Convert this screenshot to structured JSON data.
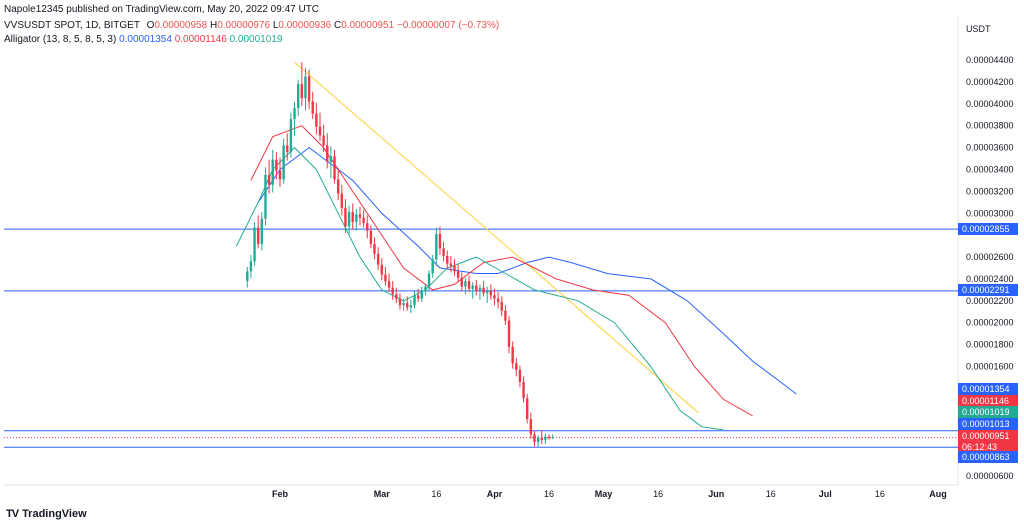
{
  "header": {
    "publisher_line": "Napole12345 published on TradingView.com, May 20, 2022 09:47 UTC",
    "symbol_line": "VVSUSDT SPOT, 1D, BITGET",
    "ohlc": {
      "o_label": "O",
      "o": "0.00000958",
      "h_label": "H",
      "h": "0.00000976",
      "l_label": "L",
      "l": "0.00000936",
      "c_label": "C",
      "c": "0.00000951",
      "change": "−0.00000007 (−0.73%)"
    },
    "indicator": {
      "name": "Alligator (13, 8, 5, 8, 5, 3)",
      "jaw": "0.00001354",
      "teeth": "0.00001146",
      "lips": "0.00001019"
    }
  },
  "footer": {
    "brand": "TradingView"
  },
  "colors": {
    "up": "#22ab94",
    "down": "#f23645",
    "jaw": "#2962ff",
    "teeth": "#f23645",
    "lips": "#22ab94",
    "trend": "#ffd54f",
    "level": "#2962ff"
  },
  "chart_data": {
    "type": "candlestick",
    "currency": "USDT",
    "x_range": [
      "2022-01-19",
      "2022-08-20"
    ],
    "x_ticks": [
      {
        "date": "2022-02-01",
        "label": "Feb"
      },
      {
        "date": "2022-03-01",
        "label": "Mar"
      },
      {
        "date": "2022-03-16",
        "label": "16"
      },
      {
        "date": "2022-04-01",
        "label": "Apr"
      },
      {
        "date": "2022-04-16",
        "label": "16"
      },
      {
        "date": "2022-05-01",
        "label": "May"
      },
      {
        "date": "2022-05-16",
        "label": "16"
      },
      {
        "date": "2022-06-01",
        "label": "Jun"
      },
      {
        "date": "2022-06-16",
        "label": "16"
      },
      {
        "date": "2022-07-01",
        "label": "Jul"
      },
      {
        "date": "2022-07-16",
        "label": "16"
      },
      {
        "date": "2022-08-01",
        "label": "Aug"
      }
    ],
    "ylim": [
      5.3e-06,
      4.9e-06
    ],
    "y_ticks": [
      "0.00004400",
      "0.00004200",
      "0.00004000",
      "0.00003800",
      "0.00003600",
      "0.00003400",
      "0.00003200",
      "0.00003000",
      "0.00002600",
      "0.00002400",
      "0.00002200",
      "0.00002000",
      "0.00001800",
      "0.00001600",
      "0.00000600"
    ],
    "y_tick_values": [
      4.4e-05,
      4.2e-05,
      4e-05,
      3.8e-05,
      3.6e-05,
      3.4e-05,
      3.2e-05,
      3e-05,
      2.6e-05,
      2.4e-05,
      2.2e-05,
      2e-05,
      1.8e-05,
      1.6e-05,
      6e-06
    ],
    "candles": [
      {
        "d": "2022-01-23",
        "o": 2.38e-05,
        "h": 2.51e-05,
        "l": 2.32e-05,
        "c": 2.47e-05
      },
      {
        "d": "2022-01-24",
        "o": 2.47e-05,
        "h": 2.62e-05,
        "l": 2.41e-05,
        "c": 2.56e-05
      },
      {
        "d": "2022-01-25",
        "o": 2.56e-05,
        "h": 2.92e-05,
        "l": 2.52e-05,
        "c": 2.87e-05
      },
      {
        "d": "2022-01-26",
        "o": 2.87e-05,
        "h": 2.98e-05,
        "l": 2.68e-05,
        "c": 2.72e-05
      },
      {
        "d": "2022-01-27",
        "o": 2.72e-05,
        "h": 3.01e-05,
        "l": 2.66e-05,
        "c": 2.95e-05
      },
      {
        "d": "2022-01-28",
        "o": 2.95e-05,
        "h": 3.42e-05,
        "l": 2.89e-05,
        "c": 3.35e-05
      },
      {
        "d": "2022-01-29",
        "o": 3.35e-05,
        "h": 3.49e-05,
        "l": 3.18e-05,
        "c": 3.26e-05
      },
      {
        "d": "2022-01-30",
        "o": 3.26e-05,
        "h": 3.58e-05,
        "l": 3.19e-05,
        "c": 3.49e-05
      },
      {
        "d": "2022-01-31",
        "o": 3.49e-05,
        "h": 3.56e-05,
        "l": 3.31e-05,
        "c": 3.39e-05
      },
      {
        "d": "2022-02-01",
        "o": 3.39e-05,
        "h": 3.51e-05,
        "l": 3.24e-05,
        "c": 3.31e-05
      },
      {
        "d": "2022-02-02",
        "o": 3.31e-05,
        "h": 3.68e-05,
        "l": 3.27e-05,
        "c": 3.62e-05
      },
      {
        "d": "2022-02-03",
        "o": 3.62e-05,
        "h": 3.73e-05,
        "l": 3.48e-05,
        "c": 3.56e-05
      },
      {
        "d": "2022-02-04",
        "o": 3.56e-05,
        "h": 3.92e-05,
        "l": 3.51e-05,
        "c": 3.86e-05
      },
      {
        "d": "2022-02-05",
        "o": 3.86e-05,
        "h": 4.02e-05,
        "l": 3.71e-05,
        "c": 3.96e-05
      },
      {
        "d": "2022-02-06",
        "o": 3.96e-05,
        "h": 4.22e-05,
        "l": 3.89e-05,
        "c": 4.18e-05
      },
      {
        "d": "2022-02-07",
        "o": 4.18e-05,
        "h": 4.38e-05,
        "l": 3.98e-05,
        "c": 4.05e-05
      },
      {
        "d": "2022-02-08",
        "o": 4.05e-05,
        "h": 4.33e-05,
        "l": 3.94e-05,
        "c": 4.25e-05
      },
      {
        "d": "2022-02-09",
        "o": 4.25e-05,
        "h": 4.31e-05,
        "l": 3.95e-05,
        "c": 4.02e-05
      },
      {
        "d": "2022-02-10",
        "o": 4.02e-05,
        "h": 4.11e-05,
        "l": 3.86e-05,
        "c": 3.91e-05
      },
      {
        "d": "2022-02-11",
        "o": 3.91e-05,
        "h": 4.01e-05,
        "l": 3.72e-05,
        "c": 3.79e-05
      },
      {
        "d": "2022-02-12",
        "o": 3.79e-05,
        "h": 3.92e-05,
        "l": 3.66e-05,
        "c": 3.71e-05
      },
      {
        "d": "2022-02-13",
        "o": 3.71e-05,
        "h": 3.81e-05,
        "l": 3.56e-05,
        "c": 3.62e-05
      },
      {
        "d": "2022-02-14",
        "o": 3.62e-05,
        "h": 3.73e-05,
        "l": 3.41e-05,
        "c": 3.47e-05
      },
      {
        "d": "2022-02-15",
        "o": 3.47e-05,
        "h": 3.61e-05,
        "l": 3.32e-05,
        "c": 3.52e-05
      },
      {
        "d": "2022-02-16",
        "o": 3.52e-05,
        "h": 3.58e-05,
        "l": 3.27e-05,
        "c": 3.31e-05
      },
      {
        "d": "2022-02-17",
        "o": 3.31e-05,
        "h": 3.41e-05,
        "l": 3.12e-05,
        "c": 3.18e-05
      },
      {
        "d": "2022-02-18",
        "o": 3.18e-05,
        "h": 3.26e-05,
        "l": 2.98e-05,
        "c": 3.05e-05
      },
      {
        "d": "2022-02-19",
        "o": 3.05e-05,
        "h": 3.13e-05,
        "l": 2.82e-05,
        "c": 2.88e-05
      },
      {
        "d": "2022-02-20",
        "o": 2.88e-05,
        "h": 3.07e-05,
        "l": 2.81e-05,
        "c": 3.01e-05
      },
      {
        "d": "2022-02-21",
        "o": 3.01e-05,
        "h": 3.09e-05,
        "l": 2.85e-05,
        "c": 2.92e-05
      },
      {
        "d": "2022-02-22",
        "o": 2.92e-05,
        "h": 3.04e-05,
        "l": 2.84e-05,
        "c": 2.99e-05
      },
      {
        "d": "2022-02-23",
        "o": 2.99e-05,
        "h": 3.06e-05,
        "l": 2.89e-05,
        "c": 2.96e-05
      },
      {
        "d": "2022-02-24",
        "o": 2.96e-05,
        "h": 3.03e-05,
        "l": 2.87e-05,
        "c": 2.91e-05
      },
      {
        "d": "2022-02-25",
        "o": 2.91e-05,
        "h": 2.98e-05,
        "l": 2.77e-05,
        "c": 2.84e-05
      },
      {
        "d": "2022-02-26",
        "o": 2.84e-05,
        "h": 2.89e-05,
        "l": 2.68e-05,
        "c": 2.72e-05
      },
      {
        "d": "2022-02-27",
        "o": 2.72e-05,
        "h": 2.78e-05,
        "l": 2.58e-05,
        "c": 2.63e-05
      },
      {
        "d": "2022-02-28",
        "o": 2.63e-05,
        "h": 2.69e-05,
        "l": 2.48e-05,
        "c": 2.53e-05
      },
      {
        "d": "2022-03-01",
        "o": 2.53e-05,
        "h": 2.59e-05,
        "l": 2.39e-05,
        "c": 2.44e-05
      },
      {
        "d": "2022-03-02",
        "o": 2.44e-05,
        "h": 2.51e-05,
        "l": 2.34e-05,
        "c": 2.38e-05
      },
      {
        "d": "2022-03-03",
        "o": 2.38e-05,
        "h": 2.45e-05,
        "l": 2.28e-05,
        "c": 2.32e-05
      },
      {
        "d": "2022-03-04",
        "o": 2.32e-05,
        "h": 2.38e-05,
        "l": 2.21e-05,
        "c": 2.26e-05
      },
      {
        "d": "2022-03-05",
        "o": 2.26e-05,
        "h": 2.32e-05,
        "l": 2.18e-05,
        "c": 2.22e-05
      },
      {
        "d": "2022-03-06",
        "o": 2.22e-05,
        "h": 2.27e-05,
        "l": 2.12e-05,
        "c": 2.16e-05
      },
      {
        "d": "2022-03-07",
        "o": 2.16e-05,
        "h": 2.22e-05,
        "l": 2.11e-05,
        "c": 2.18e-05
      },
      {
        "d": "2022-03-08",
        "o": 2.18e-05,
        "h": 2.24e-05,
        "l": 2.11e-05,
        "c": 2.14e-05
      },
      {
        "d": "2022-03-09",
        "o": 2.14e-05,
        "h": 2.21e-05,
        "l": 2.09e-05,
        "c": 2.16e-05
      },
      {
        "d": "2022-03-10",
        "o": 2.16e-05,
        "h": 2.29e-05,
        "l": 2.13e-05,
        "c": 2.25e-05
      },
      {
        "d": "2022-03-11",
        "o": 2.25e-05,
        "h": 2.31e-05,
        "l": 2.19e-05,
        "c": 2.22e-05
      },
      {
        "d": "2022-03-12",
        "o": 2.22e-05,
        "h": 2.33e-05,
        "l": 2.19e-05,
        "c": 2.29e-05
      },
      {
        "d": "2022-03-13",
        "o": 2.29e-05,
        "h": 2.36e-05,
        "l": 2.25e-05,
        "c": 2.33e-05
      },
      {
        "d": "2022-03-14",
        "o": 2.33e-05,
        "h": 2.48e-05,
        "l": 2.29e-05,
        "c": 2.45e-05
      },
      {
        "d": "2022-03-15",
        "o": 2.45e-05,
        "h": 2.62e-05,
        "l": 2.41e-05,
        "c": 2.58e-05
      },
      {
        "d": "2022-03-16",
        "o": 2.58e-05,
        "h": 2.87e-05,
        "l": 2.52e-05,
        "c": 2.81e-05
      },
      {
        "d": "2022-03-17",
        "o": 2.81e-05,
        "h": 2.88e-05,
        "l": 2.62e-05,
        "c": 2.68e-05
      },
      {
        "d": "2022-03-18",
        "o": 2.68e-05,
        "h": 2.74e-05,
        "l": 2.56e-05,
        "c": 2.61e-05
      },
      {
        "d": "2022-03-19",
        "o": 2.61e-05,
        "h": 2.66e-05,
        "l": 2.49e-05,
        "c": 2.54e-05
      },
      {
        "d": "2022-03-20",
        "o": 2.54e-05,
        "h": 2.61e-05,
        "l": 2.46e-05,
        "c": 2.52e-05
      },
      {
        "d": "2022-03-21",
        "o": 2.52e-05,
        "h": 2.58e-05,
        "l": 2.43e-05,
        "c": 2.47e-05
      },
      {
        "d": "2022-03-22",
        "o": 2.47e-05,
        "h": 2.53e-05,
        "l": 2.37e-05,
        "c": 2.41e-05
      },
      {
        "d": "2022-03-23",
        "o": 2.41e-05,
        "h": 2.46e-05,
        "l": 2.29e-05,
        "c": 2.33e-05
      },
      {
        "d": "2022-03-24",
        "o": 2.33e-05,
        "h": 2.41e-05,
        "l": 2.26e-05,
        "c": 2.38e-05
      },
      {
        "d": "2022-03-25",
        "o": 2.38e-05,
        "h": 2.43e-05,
        "l": 2.28e-05,
        "c": 2.31e-05
      },
      {
        "d": "2022-03-26",
        "o": 2.31e-05,
        "h": 2.37e-05,
        "l": 2.22e-05,
        "c": 2.34e-05
      },
      {
        "d": "2022-03-27",
        "o": 2.34e-05,
        "h": 2.39e-05,
        "l": 2.25e-05,
        "c": 2.29e-05
      },
      {
        "d": "2022-03-28",
        "o": 2.29e-05,
        "h": 2.35e-05,
        "l": 2.21e-05,
        "c": 2.32e-05
      },
      {
        "d": "2022-03-29",
        "o": 2.32e-05,
        "h": 2.38e-05,
        "l": 2.24e-05,
        "c": 2.27e-05
      },
      {
        "d": "2022-03-30",
        "o": 2.27e-05,
        "h": 2.33e-05,
        "l": 2.18e-05,
        "c": 2.29e-05
      },
      {
        "d": "2022-03-31",
        "o": 2.29e-05,
        "h": 2.35e-05,
        "l": 2.21e-05,
        "c": 2.25e-05
      },
      {
        "d": "2022-04-01",
        "o": 2.25e-05,
        "h": 2.31e-05,
        "l": 2.16e-05,
        "c": 2.22e-05
      },
      {
        "d": "2022-04-02",
        "o": 2.22e-05,
        "h": 2.28e-05,
        "l": 2.13e-05,
        "c": 2.19e-05
      },
      {
        "d": "2022-04-03",
        "o": 2.19e-05,
        "h": 2.24e-05,
        "l": 2.06e-05,
        "c": 2.11e-05
      },
      {
        "d": "2022-04-04",
        "o": 2.11e-05,
        "h": 2.16e-05,
        "l": 1.98e-05,
        "c": 2.02e-05
      },
      {
        "d": "2022-04-05",
        "o": 2.02e-05,
        "h": 2.06e-05,
        "l": 1.72e-05,
        "c": 1.78e-05
      },
      {
        "d": "2022-04-06",
        "o": 1.78e-05,
        "h": 1.83e-05,
        "l": 1.58e-05,
        "c": 1.63e-05
      },
      {
        "d": "2022-04-07",
        "o": 1.63e-05,
        "h": 1.68e-05,
        "l": 1.51e-05,
        "c": 1.57e-05
      },
      {
        "d": "2022-04-08",
        "o": 1.57e-05,
        "h": 1.61e-05,
        "l": 1.41e-05,
        "c": 1.46e-05
      },
      {
        "d": "2022-04-09",
        "o": 1.46e-05,
        "h": 1.51e-05,
        "l": 1.27e-05,
        "c": 1.31e-05
      },
      {
        "d": "2022-04-10",
        "o": 1.31e-05,
        "h": 1.35e-05,
        "l": 1.08e-05,
        "c": 1.12e-05
      },
      {
        "d": "2022-04-11",
        "o": 1.12e-05,
        "h": 1.18e-05,
        "l": 9.4e-06,
        "c": 9.8e-06
      },
      {
        "d": "2022-04-12",
        "o": 9.8e-06,
        "h": 1.01e-05,
        "l": 8.7e-06,
        "c": 9.1e-06
      },
      {
        "d": "2022-04-13",
        "o": 9.1e-06,
        "h": 9.7e-06,
        "l": 8.6e-06,
        "c": 9.5e-06
      },
      {
        "d": "2022-04-14",
        "o": 9.5e-06,
        "h": 1.02e-05,
        "l": 8.9e-06,
        "c": 9.3e-06
      },
      {
        "d": "2022-04-15",
        "o": 9.3e-06,
        "h": 9.9e-06,
        "l": 8.9e-06,
        "c": 9.6e-06
      },
      {
        "d": "2022-04-16",
        "o": 9.6e-06,
        "h": 9.8e-06,
        "l": 9.3e-06,
        "c": 9.5e-06
      },
      {
        "d": "2022-04-17",
        "o": 9.5e-06,
        "h": 9.8e-06,
        "l": 9.4e-06,
        "c": 9.51e-06
      }
    ],
    "alligator": {
      "jaw": [
        [
          3.1e-05,
          -3
        ],
        [
          3.4e-05,
          0
        ],
        [
          3.6e-05,
          4
        ],
        [
          3.5e-05,
          6
        ],
        [
          3.3e-05,
          10
        ],
        [
          3e-05,
          14
        ],
        [
          2.7e-05,
          19
        ],
        [
          2.5e-05,
          22
        ],
        [
          2.45e-05,
          27
        ],
        [
          2.45e-05,
          30
        ],
        [
          2.55e-05,
          34
        ],
        [
          2.6e-05,
          37
        ],
        [
          2.55e-05,
          40
        ],
        [
          2.45e-05,
          45
        ],
        [
          2.4e-05,
          51
        ],
        [
          2.2e-05,
          56
        ],
        [
          1.9e-05,
          61
        ],
        [
          1.65e-05,
          65
        ],
        [
          1.45e-05,
          69
        ],
        [
          1.35e-05,
          71
        ]
      ],
      "teeth": [
        [
          3.3e-05,
          -4
        ],
        [
          3.7e-05,
          -1
        ],
        [
          3.8e-05,
          3
        ],
        [
          3.6e-05,
          6
        ],
        [
          3.3e-05,
          9
        ],
        [
          2.9e-05,
          13
        ],
        [
          2.5e-05,
          17
        ],
        [
          2.3e-05,
          21
        ],
        [
          2.35e-05,
          24
        ],
        [
          2.55e-05,
          28
        ],
        [
          2.6e-05,
          32
        ],
        [
          2.5e-05,
          35
        ],
        [
          2.4e-05,
          38
        ],
        [
          2.3e-05,
          43
        ],
        [
          2.25e-05,
          48
        ],
        [
          2e-05,
          53
        ],
        [
          1.6e-05,
          57
        ],
        [
          1.3e-05,
          61
        ],
        [
          1.15e-05,
          65
        ]
      ],
      "lips": [
        [
          2.7e-05,
          -6
        ],
        [
          3.1e-05,
          -3
        ],
        [
          3.4e-05,
          -1
        ],
        [
          3.6e-05,
          2
        ],
        [
          3.4e-05,
          5
        ],
        [
          3e-05,
          8
        ],
        [
          2.6e-05,
          11
        ],
        [
          2.3e-05,
          14
        ],
        [
          2.2e-05,
          17
        ],
        [
          2.3e-05,
          20
        ],
        [
          2.5e-05,
          23
        ],
        [
          2.6e-05,
          27
        ],
        [
          2.45e-05,
          31
        ],
        [
          2.3e-05,
          35
        ],
        [
          2.2e-05,
          41
        ],
        [
          2e-05,
          46
        ],
        [
          1.6e-05,
          51
        ],
        [
          1.2e-05,
          55
        ],
        [
          1.05e-05,
          58
        ],
        [
          1.02e-05,
          61
        ]
      ]
    },
    "trendline": {
      "from": {
        "d": "2022-02-05",
        "v": 4.38e-05
      },
      "to": {
        "d": "2022-05-27",
        "v": 1.18e-05
      }
    },
    "levels": [
      {
        "value": 2.855e-05,
        "label": "0.00002855"
      },
      {
        "value": 2.291e-05,
        "label": "0.00002291"
      },
      {
        "value": 1.013e-05,
        "label": "0.00001013"
      },
      {
        "value": 8.63e-06,
        "label": "0.00000863"
      }
    ],
    "price_tags": [
      {
        "label": "0.00001354",
        "color": "#2962ff"
      },
      {
        "label": "0.00001146",
        "color": "#f23645"
      },
      {
        "label": "0.00001019",
        "color": "#22ab94"
      },
      {
        "label": "0.00001013",
        "color": "#2962ff"
      },
      {
        "label": "0.00000951",
        "color": "#f23645"
      },
      {
        "label": "06:12:43",
        "color": "#f23645"
      },
      {
        "label": "0.00000863",
        "color": "#2962ff"
      }
    ]
  }
}
